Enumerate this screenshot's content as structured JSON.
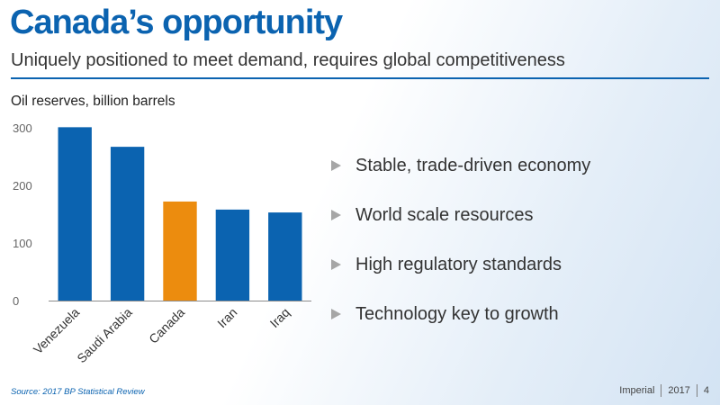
{
  "slide": {
    "title": "Canada’s opportunity",
    "subtitle": "Uniquely positioned to meet demand, requires global competitiveness",
    "bullets": [
      "Stable, trade-driven economy",
      "World scale resources",
      "High regulatory standards",
      "Technology key to growth"
    ],
    "source": "Source: 2017 BP Statistical Review",
    "footer": {
      "company": "Imperial",
      "year": "2017",
      "page": "4"
    }
  },
  "colors": {
    "accent": "#0b63b0",
    "bar": "#0b63b0",
    "highlight_bar": "#ec8c0e",
    "bullet_arrow": "#a6a6a6"
  },
  "chart_data": {
    "type": "bar",
    "title": "Oil reserves, billion barrels",
    "categories": [
      "Venezuela",
      "Saudi Arabia",
      "Canada",
      "Iran",
      "Iraq"
    ],
    "values": [
      301,
      267,
      172,
      158,
      153
    ],
    "highlight_category": "Canada",
    "ylim": [
      0,
      300
    ],
    "yticks": [
      0,
      100,
      200,
      300
    ],
    "xlabel": "",
    "ylabel": "",
    "grid": false,
    "legend": "none"
  }
}
